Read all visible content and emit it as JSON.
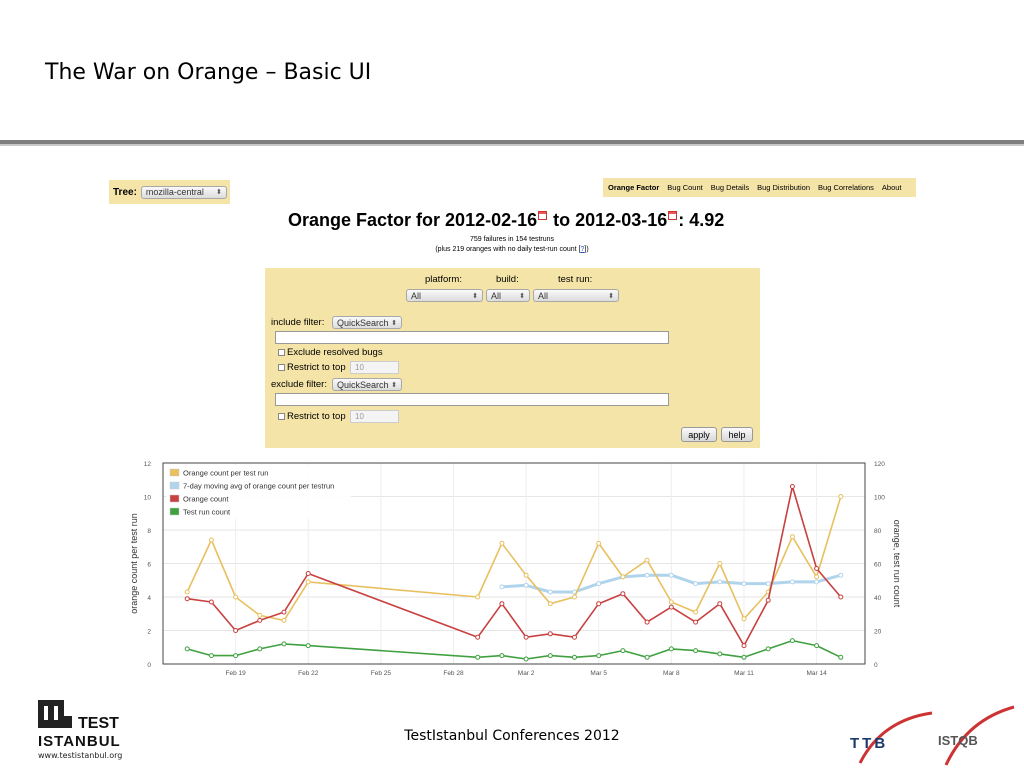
{
  "slide": {
    "title": "The War on Orange – Basic UI",
    "footer": "TestIstanbul Conferences 2012"
  },
  "tree": {
    "label": "Tree:",
    "value": "mozilla-central"
  },
  "nav": {
    "items": [
      "Orange Factor",
      "Bug Count",
      "Bug Details",
      "Bug Distribution",
      "Bug Correlations",
      "About"
    ],
    "active": "Orange Factor"
  },
  "heading": {
    "prefix": "Orange Factor for",
    "start_date": "2012-02-16",
    "to": "to",
    "end_date": "2012-03-16",
    "value": ": 4.92",
    "failures": "759 failures in 154 testruns",
    "plus_prefix": "(plus 219 oranges with no daily test-run count [",
    "plus_link": "?",
    "plus_suffix": "])"
  },
  "filters": {
    "platform_label": "platform:",
    "build_label": "build:",
    "testrun_label": "test run:",
    "platform_value": "All",
    "build_value": "All",
    "testrun_value": "All",
    "include_label": "include filter:",
    "include_mode": "QuickSearch",
    "include_text": "",
    "exclude_resolved_label": "Exclude resolved bugs",
    "restrict_top_label": "Restrict to top",
    "restrict_top_placeholder": "10",
    "exclude_label": "exclude filter:",
    "exclude_mode": "QuickSearch",
    "exclude_text": "",
    "restrict_top2_label": "Restrict to top",
    "restrict_top2_placeholder": "10",
    "apply_label": "apply",
    "help_label": "help"
  },
  "logos": {
    "left_line1": "TEST",
    "left_line2": "ISTANBUL",
    "left_url": "www.testistanbul.org",
    "ttb": "TTB",
    "istqb": "ISTQB"
  },
  "colors": {
    "panel_bg": "#f5e4a8",
    "orange_per_run": "#e8c060",
    "moving_avg": "#b0d4ec",
    "orange_count": "#c84040",
    "test_run_count": "#40a040"
  },
  "chart_data": {
    "type": "line",
    "ylabel_left": "orange count per test run",
    "ylabel_right": "orange, test run count",
    "ylim_left": [
      0,
      12
    ],
    "ylim_right": [
      0,
      120
    ],
    "yticks_left": [
      0,
      2,
      4,
      6,
      8,
      10,
      12
    ],
    "yticks_right": [
      0,
      20,
      40,
      60,
      80,
      100,
      120
    ],
    "xlim": [
      "2012-02-16",
      "2012-03-16"
    ],
    "xticks": [
      "Feb 19",
      "Feb 22",
      "Feb 25",
      "Feb 28",
      "Mar 2",
      "Mar 5",
      "Mar 8",
      "Mar 11",
      "Mar 14"
    ],
    "legend_position": "top-left",
    "series": [
      {
        "name": "Orange count per test run",
        "axis": "left",
        "color": "#e8c060",
        "x": [
          "2012-02-17",
          "2012-02-18",
          "2012-02-19",
          "2012-02-20",
          "2012-02-21",
          "2012-02-22",
          "2012-02-29",
          "2012-03-01",
          "2012-03-02",
          "2012-03-03",
          "2012-03-04",
          "2012-03-05",
          "2012-03-06",
          "2012-03-07",
          "2012-03-08",
          "2012-03-09",
          "2012-03-10",
          "2012-03-11",
          "2012-03-12",
          "2012-03-13",
          "2012-03-14",
          "2012-03-15"
        ],
        "values": [
          4.3,
          7.4,
          4.0,
          2.9,
          2.6,
          4.9,
          4.0,
          7.2,
          5.3,
          3.6,
          4.0,
          7.2,
          5.2,
          6.2,
          3.7,
          3.1,
          6.0,
          2.7,
          4.3,
          7.6,
          5.2,
          10.0
        ]
      },
      {
        "name": "7-day moving avg of orange count per testrun",
        "axis": "left",
        "color": "#b0d4ec",
        "x": [
          "2012-03-01",
          "2012-03-02",
          "2012-03-03",
          "2012-03-04",
          "2012-03-05",
          "2012-03-06",
          "2012-03-07",
          "2012-03-08",
          "2012-03-09",
          "2012-03-10",
          "2012-03-11",
          "2012-03-12",
          "2012-03-13",
          "2012-03-14",
          "2012-03-15"
        ],
        "values": [
          4.6,
          4.7,
          4.3,
          4.3,
          4.8,
          5.2,
          5.3,
          5.3,
          4.8,
          4.9,
          4.8,
          4.8,
          4.9,
          4.9,
          5.3
        ]
      },
      {
        "name": "Orange count",
        "axis": "right",
        "color": "#c84040",
        "x": [
          "2012-02-17",
          "2012-02-18",
          "2012-02-19",
          "2012-02-20",
          "2012-02-21",
          "2012-02-22",
          "2012-02-29",
          "2012-03-01",
          "2012-03-02",
          "2012-03-03",
          "2012-03-04",
          "2012-03-05",
          "2012-03-06",
          "2012-03-07",
          "2012-03-08",
          "2012-03-09",
          "2012-03-10",
          "2012-03-11",
          "2012-03-12",
          "2012-03-13",
          "2012-03-14",
          "2012-03-15"
        ],
        "values": [
          39,
          37,
          20,
          26,
          31,
          54,
          16,
          36,
          16,
          18,
          16,
          36,
          42,
          25,
          34,
          25,
          36,
          11,
          38,
          106,
          57,
          40
        ]
      },
      {
        "name": "Test run count",
        "axis": "right",
        "color": "#40a040",
        "x": [
          "2012-02-17",
          "2012-02-18",
          "2012-02-19",
          "2012-02-20",
          "2012-02-21",
          "2012-02-22",
          "2012-02-29",
          "2012-03-01",
          "2012-03-02",
          "2012-03-03",
          "2012-03-04",
          "2012-03-05",
          "2012-03-06",
          "2012-03-07",
          "2012-03-08",
          "2012-03-09",
          "2012-03-10",
          "2012-03-11",
          "2012-03-12",
          "2012-03-13",
          "2012-03-14",
          "2012-03-15"
        ],
        "values": [
          9,
          5,
          5,
          9,
          12,
          11,
          4,
          5,
          3,
          5,
          4,
          5,
          8,
          4,
          9,
          8,
          6,
          4,
          9,
          14,
          11,
          4
        ]
      }
    ]
  }
}
